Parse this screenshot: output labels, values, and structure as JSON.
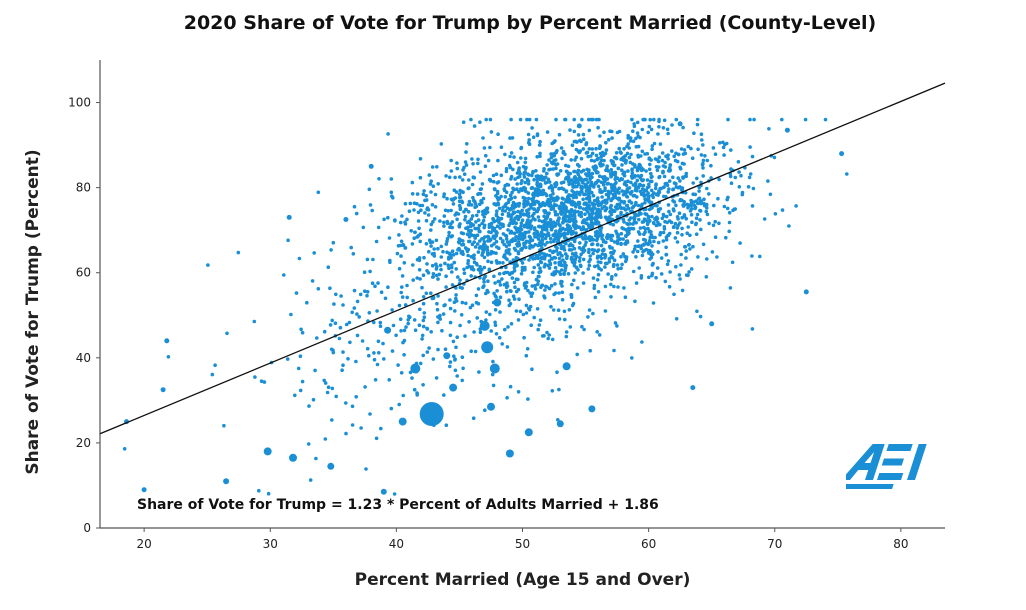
{
  "chart_data": {
    "type": "scatter",
    "title": "2020 Share of Vote for Trump by Percent Married (County-Level)",
    "xlabel": "Percent Married (Age 15 and Over)",
    "ylabel": "Share of Vote for Trump (Percent)",
    "xlim": [
      16.5,
      83.5
    ],
    "ylim": [
      0,
      110
    ],
    "xticks": [
      20,
      30,
      40,
      50,
      60,
      70,
      80
    ],
    "yticks": [
      0,
      20,
      40,
      60,
      80,
      100
    ],
    "grid": false,
    "point_color": "#1a8fd6",
    "trendline": {
      "slope": 1.23,
      "intercept": 1.86,
      "equation": "Share of Vote for Trump = 1.23 * Percent of Adults Married + 1.86"
    },
    "highlighted_points": [
      {
        "x": 42.8,
        "y": 26.8,
        "r": 12
      },
      {
        "x": 47.2,
        "y": 42.5,
        "r": 6
      },
      {
        "x": 47.8,
        "y": 37.5,
        "r": 5
      },
      {
        "x": 47.0,
        "y": 47.5,
        "r": 5
      },
      {
        "x": 41.5,
        "y": 37.5,
        "r": 5
      },
      {
        "x": 44.5,
        "y": 33.0,
        "r": 4
      },
      {
        "x": 48.0,
        "y": 53.0,
        "r": 4
      },
      {
        "x": 50.5,
        "y": 22.5,
        "r": 4
      },
      {
        "x": 49.0,
        "y": 17.5,
        "r": 4
      },
      {
        "x": 40.5,
        "y": 25.0,
        "r": 4
      },
      {
        "x": 29.8,
        "y": 18.0,
        "r": 4
      },
      {
        "x": 31.8,
        "y": 16.5,
        "r": 4
      },
      {
        "x": 34.8,
        "y": 14.5,
        "r": 3.5
      },
      {
        "x": 53.5,
        "y": 38.0,
        "r": 4
      },
      {
        "x": 47.5,
        "y": 28.5,
        "r": 4
      },
      {
        "x": 53.0,
        "y": 24.5,
        "r": 3.5
      },
      {
        "x": 55.5,
        "y": 28.0,
        "r": 3.5
      },
      {
        "x": 39.3,
        "y": 46.5,
        "r": 3.5
      },
      {
        "x": 44.0,
        "y": 40.5,
        "r": 3.5
      },
      {
        "x": 26.5,
        "y": 11.0,
        "r": 3
      },
      {
        "x": 39.0,
        "y": 8.5,
        "r": 3
      },
      {
        "x": 48.8,
        "y": 65.0,
        "r": 3
      },
      {
        "x": 72.5,
        "y": 55.5,
        "r": 2.5
      },
      {
        "x": 71.0,
        "y": 93.5,
        "r": 2.5
      },
      {
        "x": 75.3,
        "y": 88.0,
        "r": 2.5
      },
      {
        "x": 18.6,
        "y": 25.0,
        "r": 2.5
      },
      {
        "x": 21.8,
        "y": 44.0,
        "r": 2.5
      },
      {
        "x": 21.5,
        "y": 32.5,
        "r": 2.5
      },
      {
        "x": 20.0,
        "y": 9.0,
        "r": 2.5
      },
      {
        "x": 63.5,
        "y": 33.0,
        "r": 2.5
      },
      {
        "x": 54.5,
        "y": 94.5,
        "r": 2.5
      },
      {
        "x": 62.5,
        "y": 95.0,
        "r": 2.5
      },
      {
        "x": 38.0,
        "y": 85.0,
        "r": 2.5
      },
      {
        "x": 36.0,
        "y": 72.5,
        "r": 2.5
      },
      {
        "x": 31.5,
        "y": 73.0,
        "r": 2.5
      },
      {
        "x": 65.0,
        "y": 48.0,
        "r": 2.5
      }
    ]
  },
  "logo": {
    "text": "AEI",
    "color": "#1a8fd6"
  }
}
